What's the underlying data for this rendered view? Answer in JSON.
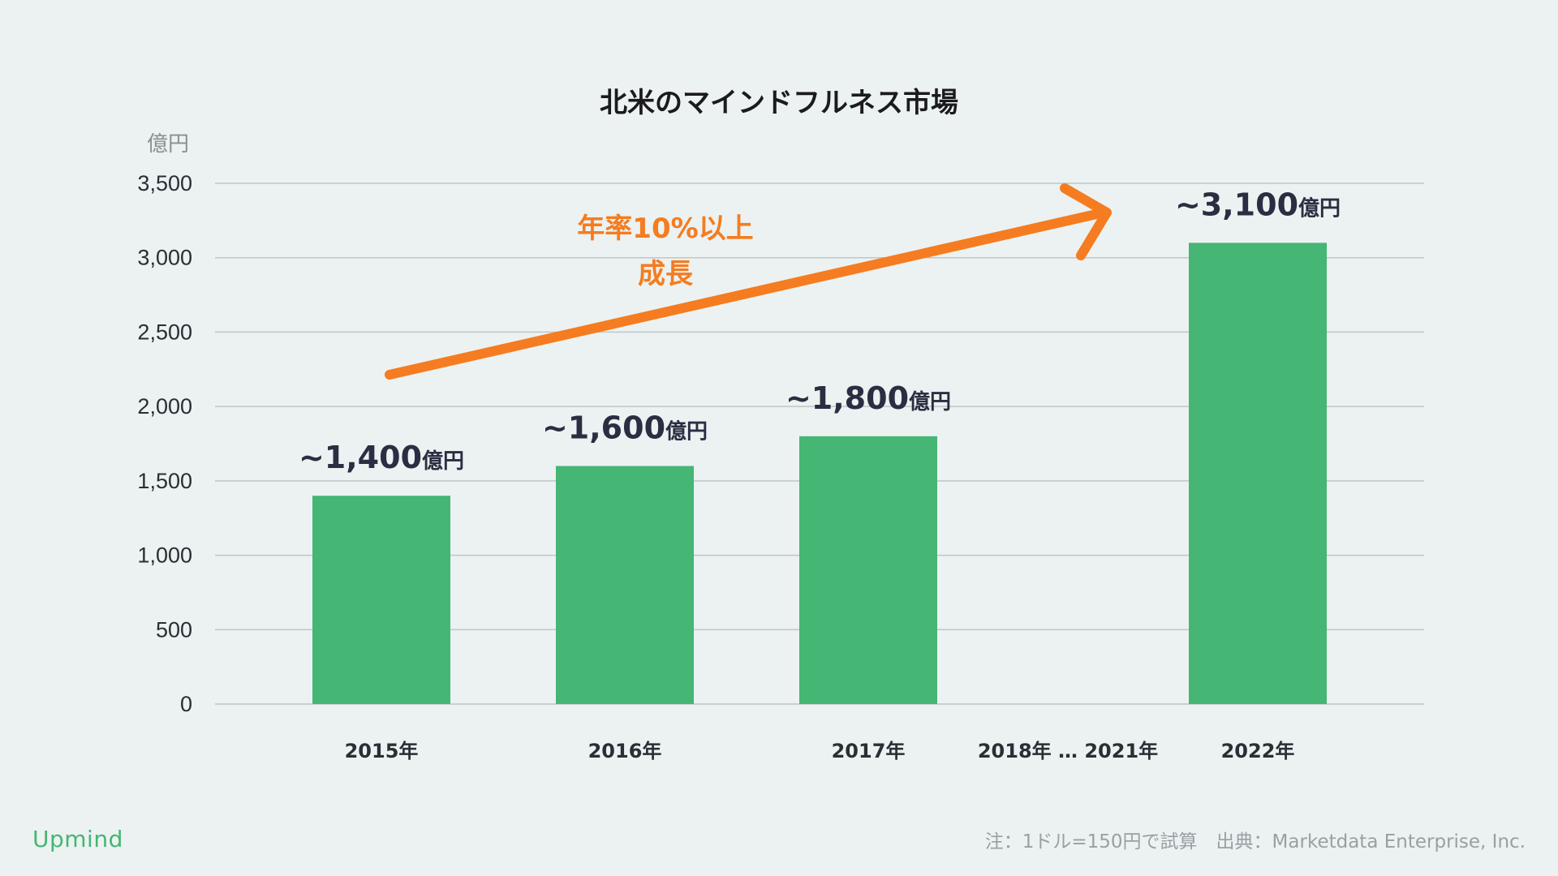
{
  "chart_data": {
    "type": "bar",
    "title": "北米のマインドフルネス市場",
    "ylabel": "億円",
    "ylim": [
      0,
      3500
    ],
    "yticks": [
      0,
      500,
      1000,
      1500,
      2000,
      2500,
      3000,
      3500
    ],
    "ytick_labels": [
      "0",
      "500",
      "1,000",
      "1,500",
      "2,000",
      "2,500",
      "3,000",
      "3,500"
    ],
    "categories": [
      "2015年",
      "2016年",
      "2017年",
      "2018年 … 2021年",
      "2022年"
    ],
    "values": [
      1400,
      1600,
      1800,
      null,
      3100
    ],
    "data_labels": [
      {
        "num": "~1,400",
        "unit": "億円"
      },
      {
        "num": "~1,600",
        "unit": "億円"
      },
      {
        "num": "~1,800",
        "unit": "億円"
      },
      null,
      {
        "num": "~3,100",
        "unit": "億円"
      }
    ],
    "grid": true,
    "annotation": {
      "lines": [
        "年率10%以上",
        "成長"
      ],
      "color": "#F57C20"
    },
    "bar_color": "#45B674"
  },
  "branding": {
    "logo": "Upmind"
  },
  "footnote": "注：1ドル=150円で試算　出典：Marketdata Enterprise, Inc."
}
